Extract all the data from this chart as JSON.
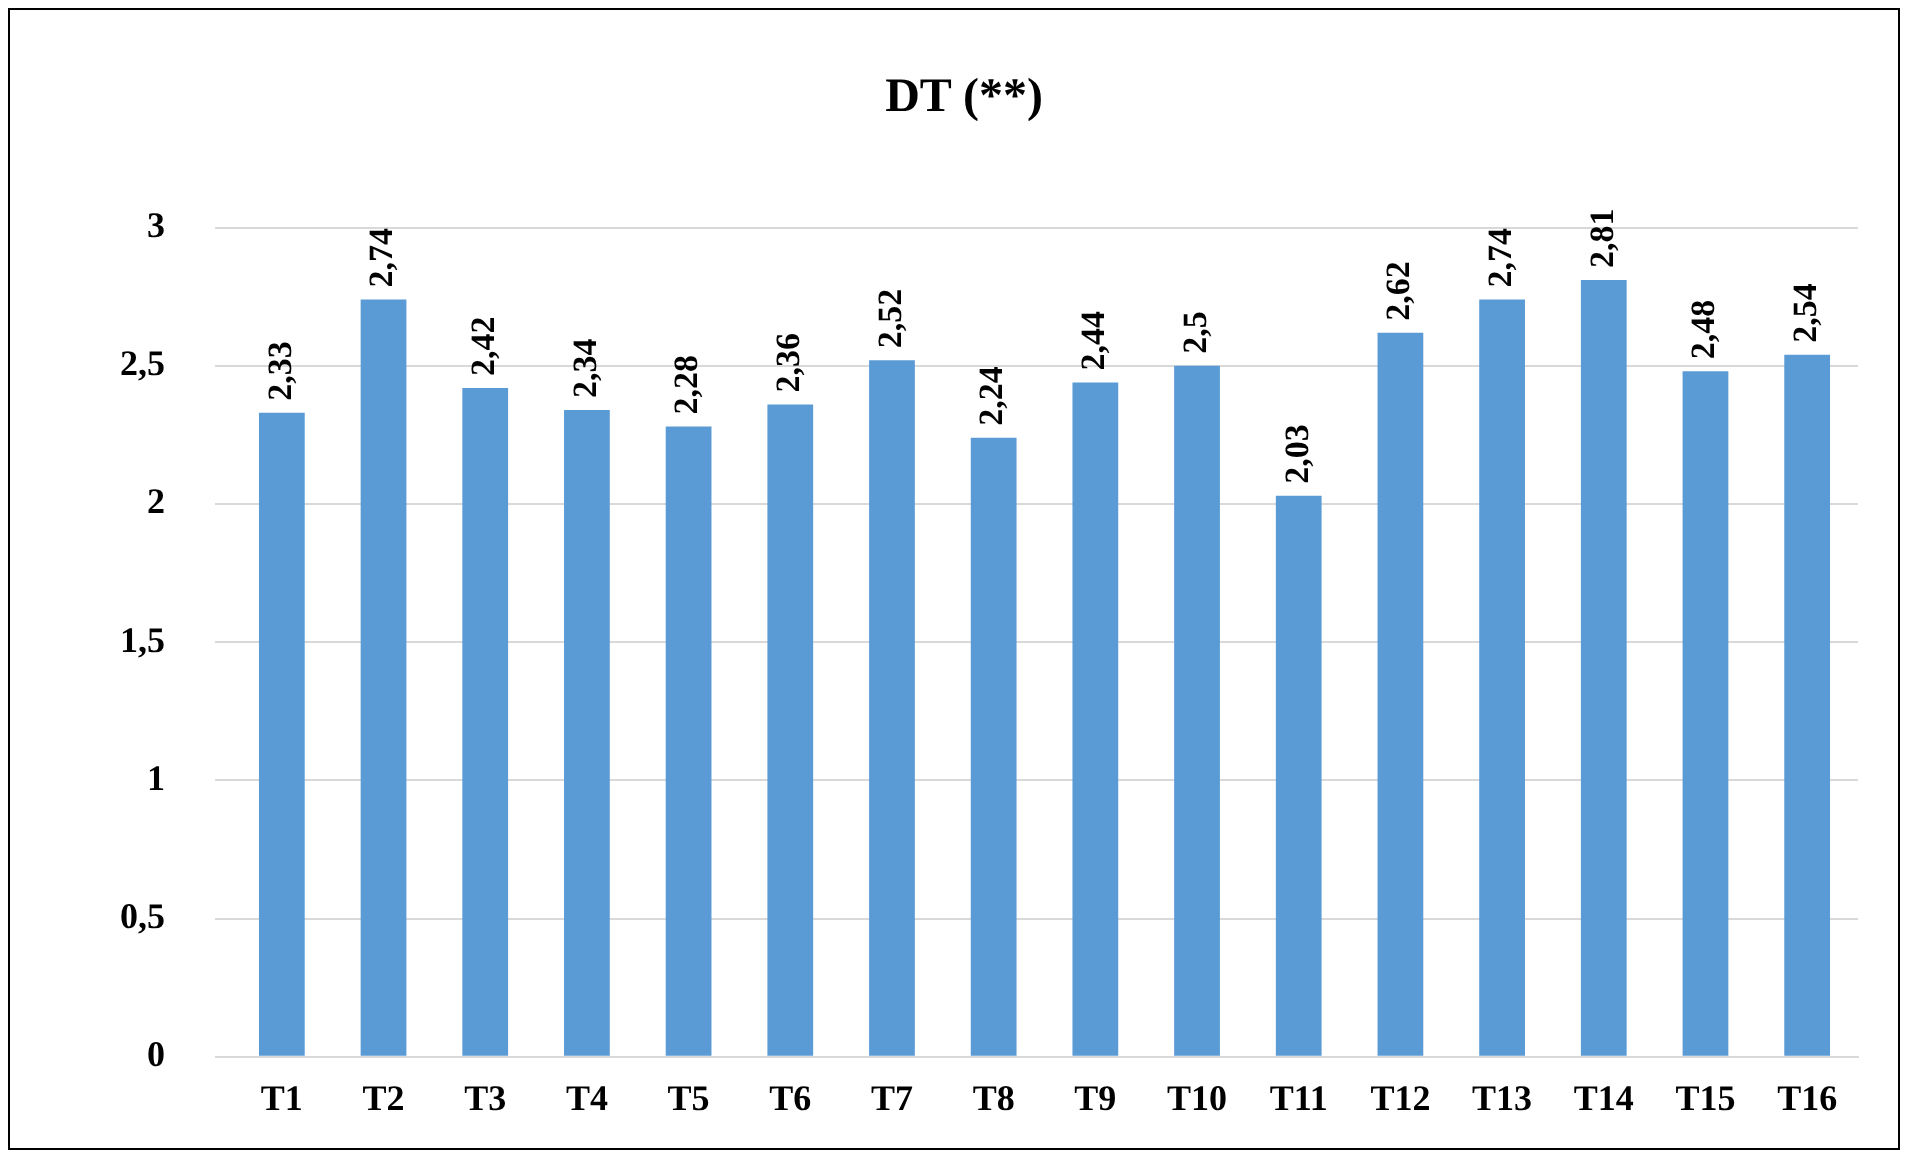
{
  "chart_data": {
    "type": "bar",
    "title": "DT (**)",
    "categories": [
      "T1",
      "T2",
      "T3",
      "T4",
      "T5",
      "T6",
      "T7",
      "T8",
      "T9",
      "T10",
      "T11",
      "T12",
      "T13",
      "T14",
      "T15",
      "T16"
    ],
    "values": [
      2.33,
      2.74,
      2.42,
      2.34,
      2.28,
      2.36,
      2.52,
      2.24,
      2.44,
      2.5,
      2.03,
      2.62,
      2.74,
      2.81,
      2.48,
      2.54
    ],
    "value_labels": [
      "2,33",
      "2,74",
      "2,42",
      "2,34",
      "2,28",
      "2,36",
      "2,52",
      "2,24",
      "2,44",
      "2,5",
      "2,03",
      "2,62",
      "2,74",
      "2,81",
      "2,48",
      "2,54"
    ],
    "color": "#5b9bd5",
    "ylim": [
      0,
      3
    ],
    "yticks": [
      {
        "value": 0,
        "label": "0"
      },
      {
        "value": 0.5,
        "label": "0,5"
      },
      {
        "value": 1,
        "label": "1"
      },
      {
        "value": 1.5,
        "label": "1,5"
      },
      {
        "value": 2,
        "label": "2"
      },
      {
        "value": 2.5,
        "label": "2,5"
      },
      {
        "value": 3,
        "label": "3"
      }
    ],
    "grid": "y",
    "legend": false
  }
}
